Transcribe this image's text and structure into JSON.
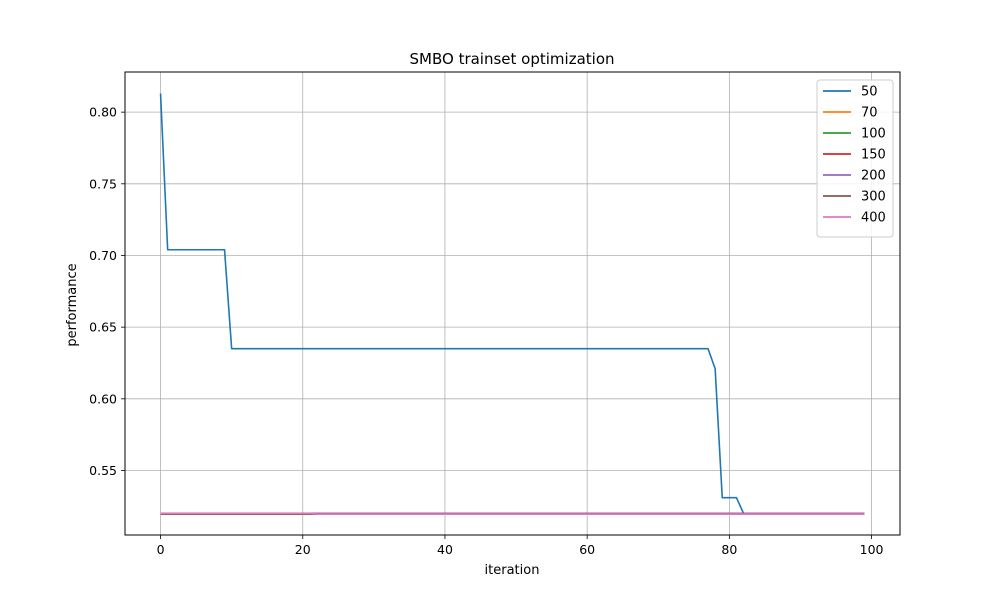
{
  "chart_data": {
    "type": "line",
    "title": "SMBO trainset optimization",
    "xlabel": "iteration",
    "ylabel": "performance",
    "xlim": [
      -5,
      104
    ],
    "ylim": [
      0.505,
      0.828
    ],
    "xticks": [
      0,
      20,
      40,
      60,
      80,
      100
    ],
    "xtick_labels": [
      "0",
      "20",
      "40",
      "60",
      "80",
      "100"
    ],
    "yticks": [
      0.55,
      0.6,
      0.65,
      0.7,
      0.75,
      0.8
    ],
    "ytick_labels": [
      "0.55",
      "0.60",
      "0.65",
      "0.70",
      "0.75",
      "0.80"
    ],
    "grid": true,
    "legend_position": "top-right",
    "series": [
      {
        "name": "50",
        "color": "#1f77b4",
        "points": [
          [
            0,
            0.813
          ],
          [
            1,
            0.704
          ],
          [
            9,
            0.704
          ],
          [
            10,
            0.635
          ],
          [
            77,
            0.635
          ],
          [
            78,
            0.621
          ],
          [
            79,
            0.531
          ],
          [
            81,
            0.531
          ],
          [
            82,
            0.52
          ],
          [
            99,
            0.52
          ]
        ]
      },
      {
        "name": "70",
        "color": "#ff7f0e",
        "points": [
          [
            0,
            0.52
          ],
          [
            99,
            0.52
          ]
        ]
      },
      {
        "name": "100",
        "color": "#2ca02c",
        "points": [
          [
            0,
            0.52
          ],
          [
            99,
            0.52
          ]
        ]
      },
      {
        "name": "150",
        "color": "#d62728",
        "points": [
          [
            0,
            0.52
          ],
          [
            99,
            0.52
          ]
        ]
      },
      {
        "name": "200",
        "color": "#9467bd",
        "points": [
          [
            0,
            0.52
          ],
          [
            99,
            0.52
          ]
        ]
      },
      {
        "name": "300",
        "color": "#8c564b",
        "points": [
          [
            0,
            0.5195
          ],
          [
            99,
            0.5195
          ]
        ]
      },
      {
        "name": "400",
        "color": "#e377c2",
        "points": [
          [
            0,
            0.52
          ],
          [
            21,
            0.52
          ],
          [
            22,
            0.5195
          ],
          [
            99,
            0.5195
          ]
        ]
      }
    ]
  }
}
